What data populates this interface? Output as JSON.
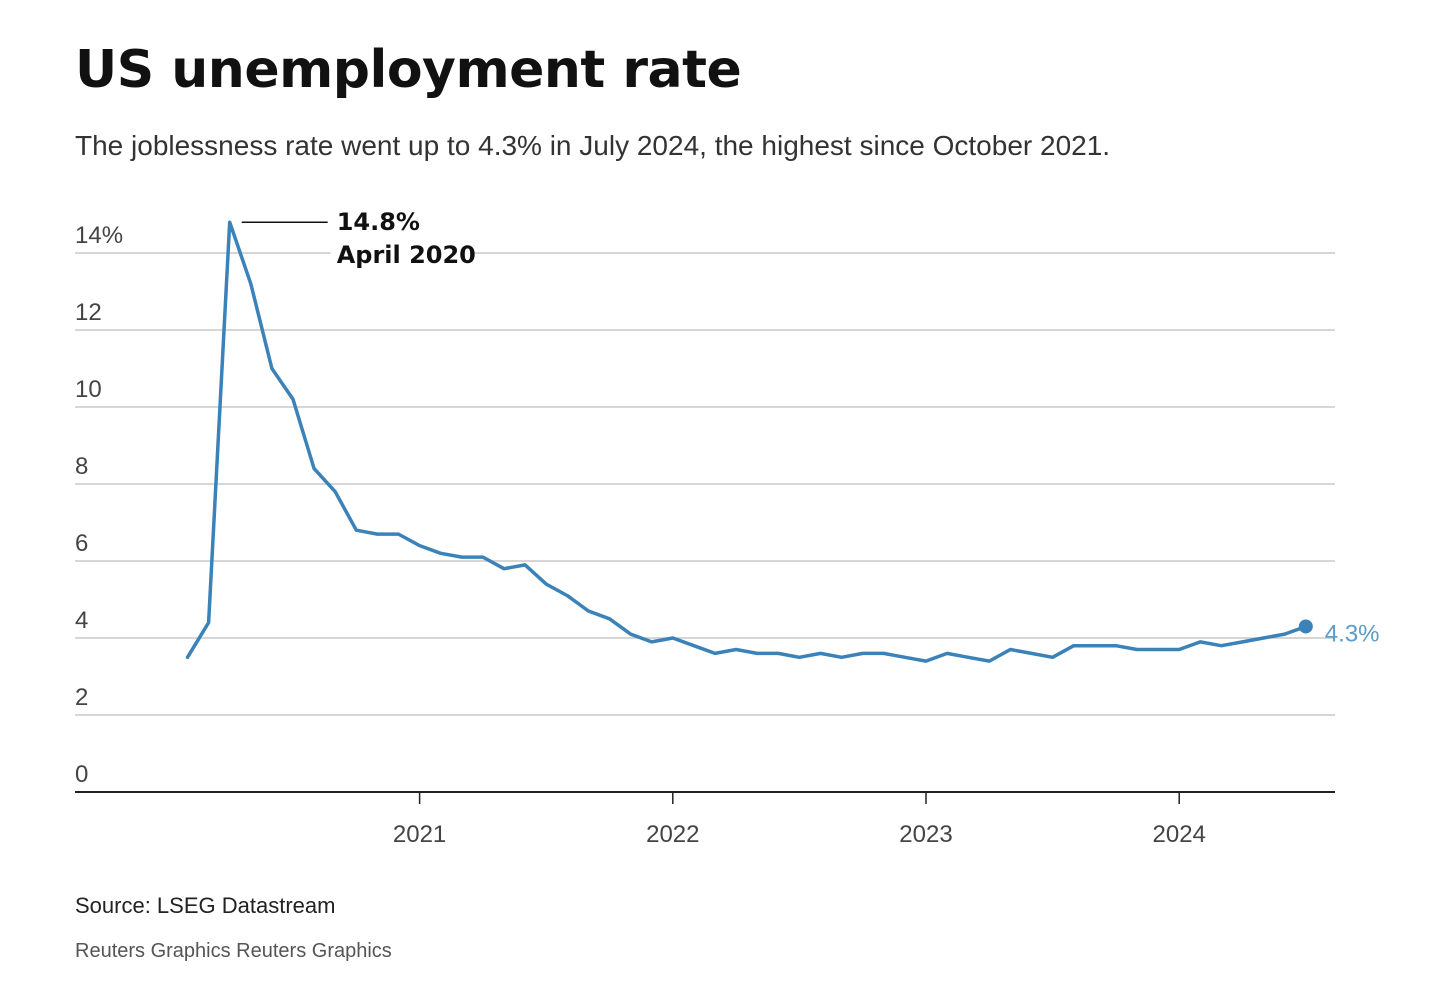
{
  "header": {
    "title": "US unemployment rate",
    "subtitle": "The joblessness rate went up to 4.3% in July 2024, the highest since October 2021."
  },
  "footer": {
    "source": "Source: LSEG Datastream",
    "credit": "Reuters Graphics Reuters Graphics"
  },
  "colors": {
    "line": "#3a82b8",
    "grid": "#c8c8c8",
    "axis": "#222222"
  },
  "chart_data": {
    "type": "line",
    "title": "US unemployment rate",
    "subtitle": "The joblessness rate went up to 4.3% in July 2024, the highest since October 2021.",
    "xlabel": "",
    "ylabel": "",
    "ylim": [
      0,
      14
    ],
    "y_ticks": [
      0,
      2,
      4,
      6,
      8,
      10,
      12,
      14
    ],
    "y_tick_labels": [
      "0",
      "2",
      "4",
      "6",
      "8",
      "10",
      "12",
      "14%"
    ],
    "x_ticks": [
      "2021-01",
      "2022-01",
      "2023-01",
      "2024-01"
    ],
    "x_tick_labels": [
      "2021",
      "2022",
      "2023",
      "2024"
    ],
    "grid": true,
    "series": [
      {
        "x": [
          "2020-02",
          "2020-03",
          "2020-04",
          "2020-05",
          "2020-06",
          "2020-07",
          "2020-08",
          "2020-09",
          "2020-10",
          "2020-11",
          "2020-12",
          "2021-01",
          "2021-02",
          "2021-03",
          "2021-04",
          "2021-05",
          "2021-06",
          "2021-07",
          "2021-08",
          "2021-09",
          "2021-10",
          "2021-11",
          "2021-12",
          "2022-01",
          "2022-02",
          "2022-03",
          "2022-04",
          "2022-05",
          "2022-06",
          "2022-07",
          "2022-08",
          "2022-09",
          "2022-10",
          "2022-11",
          "2022-12",
          "2023-01",
          "2023-02",
          "2023-03",
          "2023-04",
          "2023-05",
          "2023-06",
          "2023-07",
          "2023-08",
          "2023-09",
          "2023-10",
          "2023-11",
          "2023-12",
          "2024-01",
          "2024-02",
          "2024-03",
          "2024-04",
          "2024-05",
          "2024-06",
          "2024-07"
        ],
        "values": [
          3.5,
          4.4,
          14.8,
          13.2,
          11.0,
          10.2,
          8.4,
          7.8,
          6.8,
          6.7,
          6.7,
          6.4,
          6.2,
          6.1,
          6.1,
          5.8,
          5.9,
          5.4,
          5.1,
          4.7,
          4.5,
          4.1,
          3.9,
          4.0,
          3.8,
          3.6,
          3.7,
          3.6,
          3.6,
          3.5,
          3.6,
          3.5,
          3.6,
          3.6,
          3.5,
          3.4,
          3.6,
          3.5,
          3.4,
          3.7,
          3.6,
          3.5,
          3.8,
          3.8,
          3.8,
          3.7,
          3.7,
          3.7,
          3.9,
          3.8,
          3.9,
          4.0,
          4.1,
          4.3
        ]
      }
    ],
    "annotations": [
      {
        "value": "14.8%",
        "date": "April 2020"
      }
    ],
    "end_label": "4.3%"
  }
}
